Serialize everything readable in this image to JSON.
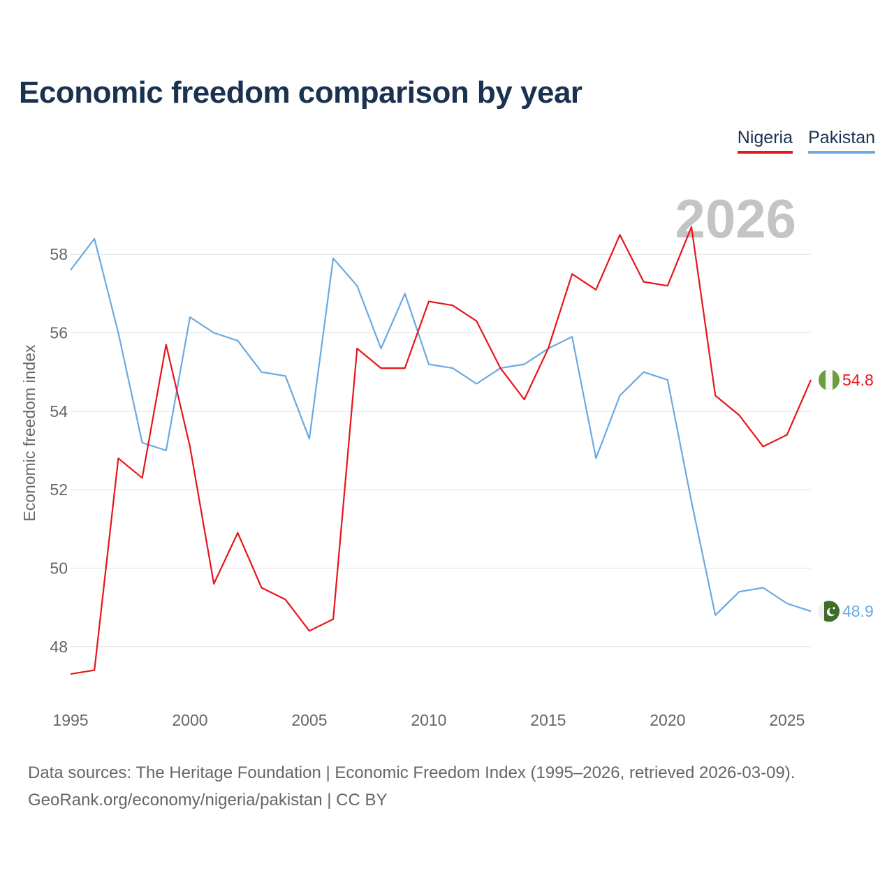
{
  "title": "Economic freedom comparison by year",
  "legend": {
    "nigeria": "Nigeria",
    "pakistan": "Pakistan"
  },
  "colors": {
    "nigeria": "#e8141b",
    "pakistan": "#6aa9e3",
    "title": "#1a3150",
    "grid": "#e6e6e6",
    "text": "#666666",
    "year": "#c4c4c4"
  },
  "current_year": "2026",
  "end_labels": {
    "nigeria": "54.8",
    "pakistan": "48.9"
  },
  "icons": {
    "nigeria": "nigeria-flag-icon",
    "pakistan": "pakistan-flag-icon"
  },
  "source": {
    "line1": "Data sources: The Heritage Foundation | Economic Freedom Index (1995–2026, retrieved 2026-03-09).",
    "line2": "GeoRank.org/economy/nigeria/pakistan | CC BY"
  },
  "chart_data": {
    "type": "line",
    "title": "Economic freedom comparison by year",
    "xlabel": "",
    "ylabel": "Economic freedom index",
    "xlim": [
      1995,
      2026
    ],
    "ylim": [
      46.5,
      59.5
    ],
    "xticks": [
      1995,
      2000,
      2005,
      2010,
      2015,
      2020,
      2025
    ],
    "yticks": [
      48,
      50,
      52,
      54,
      56,
      58
    ],
    "grid": true,
    "legend_position": "top-right",
    "x": [
      1995,
      1996,
      1997,
      1998,
      1999,
      2000,
      2001,
      2002,
      2003,
      2004,
      2005,
      2006,
      2007,
      2008,
      2009,
      2010,
      2011,
      2012,
      2013,
      2014,
      2015,
      2016,
      2017,
      2018,
      2019,
      2020,
      2021,
      2022,
      2023,
      2024,
      2025,
      2026
    ],
    "series": [
      {
        "name": "Nigeria",
        "key": "nigeria",
        "values": [
          47.3,
          47.4,
          52.8,
          52.3,
          55.7,
          53.1,
          49.6,
          50.9,
          49.5,
          49.2,
          48.4,
          48.7,
          55.6,
          55.1,
          55.1,
          56.8,
          56.7,
          56.3,
          55.1,
          54.3,
          55.6,
          57.5,
          57.1,
          58.5,
          57.3,
          57.2,
          58.7,
          54.4,
          53.9,
          53.1,
          53.4,
          54.8
        ]
      },
      {
        "name": "Pakistan",
        "key": "pakistan",
        "values": [
          57.6,
          58.4,
          56.0,
          53.2,
          53.0,
          56.4,
          56.0,
          55.8,
          55.0,
          54.9,
          53.3,
          57.9,
          57.2,
          55.6,
          57.0,
          55.2,
          55.1,
          54.7,
          55.1,
          55.2,
          55.6,
          55.9,
          52.8,
          54.4,
          55.0,
          54.8,
          51.7,
          48.8,
          49.4,
          49.5,
          49.1,
          48.9
        ]
      }
    ]
  }
}
